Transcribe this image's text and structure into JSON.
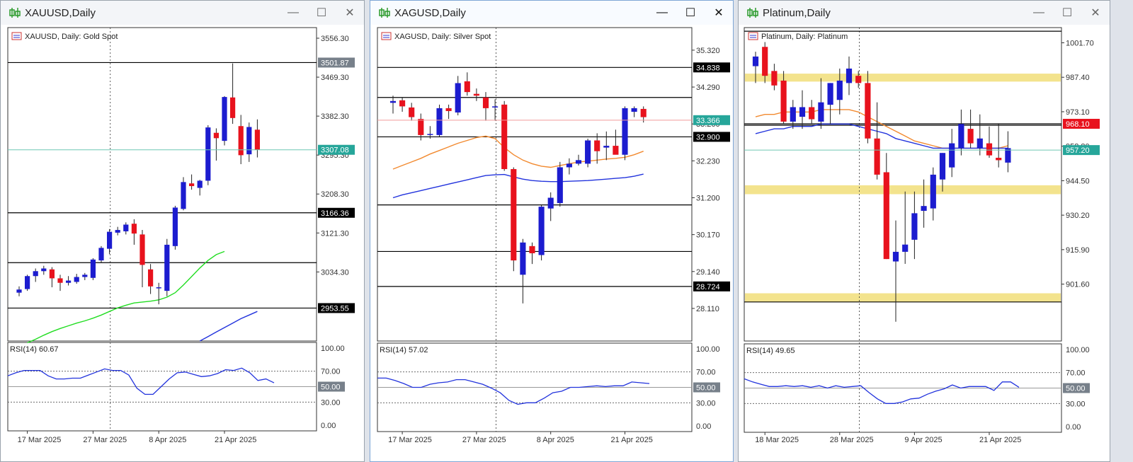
{
  "windows": [
    {
      "id": "gold",
      "title": "XAUUSD,Daily",
      "legend": "XAUUSD, Daily:  Gold Spot",
      "rsi_label": "RSI(14) 60.67",
      "controls": {
        "minimize": "—",
        "maximize": "☐",
        "close": "✕"
      }
    },
    {
      "id": "silver",
      "title": "XAGUSD,Daily",
      "legend": "XAGUSD, Daily:  Silver Spot",
      "rsi_label": "RSI(14) 57.02",
      "controls": {
        "minimize": "—",
        "maximize": "☐",
        "close": "✕"
      }
    },
    {
      "id": "platinum",
      "title": "Platinum,Daily",
      "legend": "Platinum, Daily:  Platinum",
      "rsi_label": "RSI(14) 49.65",
      "controls": {
        "minimize": "—",
        "maximize": "☐",
        "close": "✕"
      }
    }
  ],
  "colors": {
    "bull": "#1c1ccf",
    "bear": "#e8121d",
    "ma_fast_gold": "#22dd22",
    "ma_fast": "#f28a30",
    "ma_slow": "#2233dd",
    "rsi": "#2233dd",
    "zone": "#f3e38d",
    "bid_gold": "#6fc7b3",
    "bid_silver": "#f09a9a",
    "bid_plat": "#6fc7b3"
  },
  "chart_data": [
    {
      "type": "candlestick",
      "title": "XAUUSD, Daily:  Gold Spot",
      "ylim": [
        2880,
        3580
      ],
      "y_ticks": [
        "3556.30",
        "3469.30",
        "3382.30",
        "3295.30",
        "3208.30",
        "3121.30",
        "3034.30"
      ],
      "x_ticks": [
        {
          "i": 1,
          "label": "17 Mar 2025"
        },
        {
          "i": 9,
          "label": "27 Mar 2025"
        },
        {
          "i": 17,
          "label": "8 Apr 2025"
        },
        {
          "i": 25,
          "label": "21 Apr 2025"
        }
      ],
      "candles": [
        [
          2988,
          3002,
          2980,
          2995
        ],
        [
          2996,
          3028,
          2992,
          3025
        ],
        [
          3025,
          3042,
          3012,
          3036
        ],
        [
          3036,
          3048,
          3028,
          3042
        ],
        [
          3040,
          3045,
          3000,
          3020
        ],
        [
          3020,
          3028,
          2992,
          3010
        ],
        [
          3010,
          3025,
          3004,
          3015
        ],
        [
          3012,
          3030,
          3008,
          3023
        ],
        [
          3023,
          3032,
          3016,
          3028
        ],
        [
          3021,
          3065,
          3016,
          3062
        ],
        [
          3060,
          3092,
          3055,
          3088
        ],
        [
          3086,
          3130,
          3074,
          3124
        ],
        [
          3122,
          3135,
          3116,
          3128
        ],
        [
          3125,
          3145,
          3118,
          3140
        ],
        [
          3142,
          3152,
          3095,
          3120
        ],
        [
          3118,
          3128,
          3000,
          3050
        ],
        [
          3040,
          3052,
          2985,
          3002
        ],
        [
          3000,
          3010,
          2962,
          3000
        ],
        [
          2992,
          3108,
          2980,
          3095
        ],
        [
          3092,
          3182,
          3084,
          3178
        ],
        [
          3175,
          3246,
          3172,
          3235
        ],
        [
          3232,
          3252,
          3218,
          3226
        ],
        [
          3222,
          3240,
          3205,
          3238
        ],
        [
          3238,
          3362,
          3228,
          3357
        ],
        [
          3345,
          3355,
          3283,
          3333
        ],
        [
          3327,
          3427,
          3317,
          3425
        ],
        [
          3424,
          3500,
          3365,
          3378
        ],
        [
          3360,
          3385,
          3275,
          3295
        ],
        [
          3297,
          3368,
          3280,
          3358
        ],
        [
          3352,
          3375,
          3290,
          3307
        ]
      ],
      "ma_fast": [
        2876,
        2884,
        2893,
        2901,
        2908,
        2914,
        2920,
        2925,
        2931,
        2938,
        2946,
        2954,
        2960,
        2965,
        2967,
        2969,
        2972,
        2978,
        2988,
        3005,
        3024,
        3043,
        3060,
        3073,
        3080
      ],
      "ma_slow": [
        2880,
        2890,
        2900,
        2910,
        2920,
        2930,
        2938,
        2946
      ],
      "levels": [
        {
          "price": "3501.87",
          "value": 3501.87,
          "badge": "gray"
        },
        {
          "price": "3166.36",
          "value": 3166.36,
          "badge": "black"
        },
        {
          "price": "2953.55",
          "value": 2953.55,
          "badge": "black"
        },
        {
          "price": "",
          "value": 3055
        }
      ],
      "bid": {
        "price": "3307.08",
        "value": 3307.08
      },
      "rsi": {
        "ticks": [
          "100.00",
          "70.00",
          "50.00",
          "30.00",
          "0.00"
        ],
        "level_50": "50.00",
        "values": [
          64,
          68,
          71,
          71,
          71,
          64,
          60,
          60,
          61,
          61,
          65,
          69,
          73,
          71,
          71,
          65,
          48,
          40,
          40,
          50,
          60,
          68,
          69,
          66,
          63,
          64,
          67,
          72,
          71,
          74,
          68,
          58,
          60,
          55
        ]
      }
    },
    {
      "type": "candlestick",
      "title": "XAGUSD, Daily:  Silver Spot",
      "ylim": [
        27.2,
        35.95
      ],
      "y_ticks": [
        "35.320",
        "34.290",
        "33.260",
        "32.230",
        "31.200",
        "30.170",
        "29.140",
        "28.110"
      ],
      "x_ticks": [
        {
          "i": 1,
          "label": "17 Mar 2025"
        },
        {
          "i": 9,
          "label": "27 Mar 2025"
        },
        {
          "i": 17,
          "label": "8 Apr 2025"
        },
        {
          "i": 25,
          "label": "21 Apr 2025"
        }
      ],
      "candles": [
        [
          33.85,
          34.05,
          33.55,
          33.9
        ],
        [
          33.92,
          34.0,
          33.6,
          33.75
        ],
        [
          33.72,
          33.85,
          33.35,
          33.45
        ],
        [
          33.4,
          33.55,
          32.8,
          32.95
        ],
        [
          32.96,
          33.2,
          32.85,
          32.98
        ],
        [
          32.95,
          33.8,
          32.9,
          33.7
        ],
        [
          33.7,
          33.8,
          33.4,
          33.62
        ],
        [
          33.58,
          34.6,
          33.5,
          34.4
        ],
        [
          34.45,
          34.7,
          34.05,
          34.15
        ],
        [
          34.1,
          34.25,
          33.9,
          34.05
        ],
        [
          34.0,
          34.15,
          33.35,
          33.7
        ],
        [
          33.72,
          33.95,
          33.35,
          33.75
        ],
        [
          33.8,
          33.9,
          31.95,
          32.0
        ],
        [
          32.0,
          32.05,
          29.15,
          29.45
        ],
        [
          29.05,
          30.05,
          28.25,
          29.95
        ],
        [
          29.85,
          29.95,
          29.35,
          29.65
        ],
        [
          29.6,
          31.0,
          29.45,
          30.95
        ],
        [
          30.9,
          31.35,
          30.55,
          31.2
        ],
        [
          31.05,
          32.2,
          30.95,
          32.05
        ],
        [
          32.05,
          32.3,
          31.85,
          32.15
        ],
        [
          32.15,
          32.4,
          32.1,
          32.25
        ],
        [
          32.15,
          32.85,
          32.05,
          32.8
        ],
        [
          32.8,
          33.0,
          32.15,
          32.5
        ],
        [
          32.6,
          33.05,
          32.25,
          32.65
        ],
        [
          32.65,
          33.1,
          32.45,
          32.4
        ],
        [
          32.4,
          33.75,
          32.25,
          33.7
        ],
        [
          33.6,
          33.75,
          33.45,
          33.7
        ],
        [
          33.68,
          33.75,
          33.3,
          33.45
        ]
      ],
      "ma_fast": [
        32.0,
        32.1,
        32.2,
        32.3,
        32.42,
        32.52,
        32.62,
        32.72,
        32.8,
        32.88,
        32.92,
        32.85,
        32.6,
        32.4,
        32.25,
        32.15,
        32.08,
        32.05,
        32.1,
        32.15,
        32.2,
        32.22,
        32.25,
        32.28,
        32.3,
        32.33,
        32.4,
        32.5
      ],
      "ma_slow": [
        31.2,
        31.28,
        31.34,
        31.4,
        31.46,
        31.52,
        31.58,
        31.64,
        31.7,
        31.76,
        31.82,
        31.84,
        31.85,
        31.78,
        31.72,
        31.68,
        31.66,
        31.65,
        31.65,
        31.66,
        31.67,
        31.68,
        31.7,
        31.72,
        31.74,
        31.76,
        31.8,
        31.86
      ],
      "levels": [
        {
          "price": "34.838",
          "value": 34.838,
          "badge": "black"
        },
        {
          "price": "32.900",
          "value": 32.9,
          "badge": "black"
        },
        {
          "price": "28.724",
          "value": 28.724,
          "badge": "black"
        },
        {
          "price": "",
          "value": 34.0
        },
        {
          "price": "",
          "value": 31.0
        },
        {
          "price": "",
          "value": 29.7
        }
      ],
      "bid": {
        "price": "33.366",
        "value": 33.366
      },
      "rsi": {
        "ticks": [
          "100.00",
          "70.00",
          "50.00",
          "30.00",
          "0.00"
        ],
        "level_50": "50.00",
        "values": [
          62,
          62,
          59,
          55,
          50,
          50,
          54,
          56,
          57,
          60,
          60,
          57,
          54,
          49,
          43,
          33,
          28,
          30,
          30,
          36,
          43,
          45,
          50,
          50,
          51,
          52,
          51,
          52,
          52,
          57,
          56,
          55
        ]
      }
    },
    {
      "type": "candlestick",
      "title": "Platinum, Daily:  Platinum",
      "ylim": [
        878,
        1008
      ],
      "y_ticks": [
        "1001.70",
        "987.40",
        "973.10",
        "958.80",
        "944.50",
        "930.20",
        "915.90",
        "901.60"
      ],
      "x_ticks": [
        {
          "i": 1,
          "label": "18 Mar 2025"
        },
        {
          "i": 9,
          "label": "28 Mar 2025"
        },
        {
          "i": 17,
          "label": "9 Apr 2025"
        },
        {
          "i": 25,
          "label": "21 Apr 2025"
        }
      ],
      "candles": [
        [
          992,
          998,
          985,
          996
        ],
        [
          1000,
          1002,
          985,
          988
        ],
        [
          990,
          993,
          982,
          984
        ],
        [
          986,
          990,
          968,
          969
        ],
        [
          969,
          978,
          966,
          975
        ],
        [
          971,
          982,
          966,
          975
        ],
        [
          975,
          978,
          968,
          970
        ],
        [
          969,
          987,
          966,
          977
        ],
        [
          976,
          985,
          968,
          985
        ],
        [
          978,
          991,
          972,
          986
        ],
        [
          985,
          996,
          980,
          991
        ],
        [
          988,
          990,
          983,
          985
        ],
        [
          985,
          990,
          960,
          962
        ],
        [
          962,
          977,
          945,
          947
        ],
        [
          948,
          956,
          912,
          912
        ],
        [
          911,
          928,
          886,
          915
        ],
        [
          915,
          940,
          910,
          918
        ],
        [
          920,
          940,
          912,
          931
        ],
        [
          932,
          945,
          925,
          934
        ],
        [
          933,
          950,
          928,
          947
        ],
        [
          945,
          956,
          940,
          956
        ],
        [
          950,
          966,
          946,
          960
        ],
        [
          958,
          974,
          955,
          968
        ],
        [
          966,
          974,
          958,
          960
        ],
        [
          958,
          972,
          955,
          962
        ],
        [
          960,
          967,
          954,
          955
        ],
        [
          954,
          968,
          950,
          953
        ],
        [
          952,
          965,
          948,
          958
        ]
      ],
      "ma_fast": [
        971,
        972,
        972,
        973,
        973,
        973,
        973,
        974,
        974,
        974,
        974,
        973,
        971,
        969,
        967,
        965,
        963,
        961,
        960,
        959,
        958,
        958,
        958,
        958,
        958,
        958,
        958,
        959
      ],
      "ma_slow": [
        964,
        965,
        966,
        966,
        967,
        967,
        967,
        968,
        968,
        968,
        968,
        967,
        966,
        965,
        964,
        962,
        961,
        960,
        959,
        958,
        958,
        958,
        958,
        958,
        958,
        958,
        958,
        958
      ],
      "levels": [
        {
          "price": "968.10",
          "value": 968.1,
          "badge": "red"
        },
        {
          "price": "",
          "value": 1006.5
        }
      ],
      "zones": [
        [
          985.6,
          988.9
        ],
        [
          938.9,
          942.6
        ],
        [
          894.2,
          897.8
        ]
      ],
      "zone_edges": [
        967.5,
        894.2
      ],
      "bid": {
        "price": "957.20",
        "value": 957.2
      },
      "rsi": {
        "ticks": [
          "100.00",
          "70.00",
          "50.00",
          "30.00",
          "0.00"
        ],
        "level_50": "50.00",
        "values": [
          62,
          58,
          55,
          52,
          52,
          53,
          52,
          53,
          51,
          53,
          50,
          53,
          51,
          52,
          53,
          44,
          36,
          30,
          30,
          32,
          36,
          37,
          42,
          46,
          49,
          54,
          50,
          52,
          52,
          52,
          47,
          58,
          58,
          51
        ]
      }
    }
  ]
}
